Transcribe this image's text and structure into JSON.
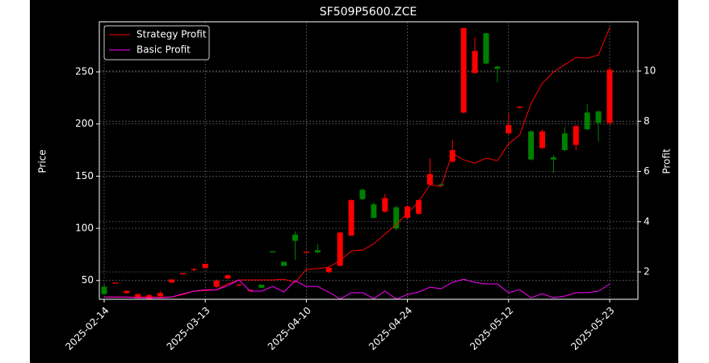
{
  "chart_data": {
    "type": "candlestick",
    "title": "SF509P5600.ZCE",
    "y_label": "Price",
    "y2_label": "Profit",
    "categories": [
      "2025-02-14",
      null,
      null,
      null,
      null,
      null,
      null,
      null,
      null,
      "2025-03-13",
      null,
      null,
      null,
      null,
      null,
      null,
      null,
      null,
      "2025-04-10",
      null,
      null,
      null,
      null,
      null,
      null,
      null,
      null,
      "2025-04-24",
      null,
      null,
      null,
      null,
      null,
      null,
      null,
      null,
      "2025-05-12",
      null,
      null,
      null,
      null,
      null,
      null,
      null,
      null,
      "2025-05-23"
    ],
    "open": [
      44,
      47,
      38,
      33,
      32,
      35,
      48,
      56,
      60,
      62,
      44,
      52,
      45,
      40,
      46,
      78,
      68,
      94,
      76.5,
      79,
      58,
      64,
      93,
      137,
      123,
      116,
      120,
      110,
      114,
      142,
      142,
      164,
      211,
      249,
      287,
      255,
      191,
      215.5,
      193,
      177,
      168,
      191,
      180,
      211,
      212,
      201
    ],
    "high": [
      46,
      48,
      41,
      37,
      37,
      40,
      51,
      57,
      62,
      66,
      51,
      56,
      47,
      41,
      46,
      78,
      68,
      97,
      78,
      85,
      64,
      96,
      128,
      138,
      125,
      133,
      122,
      122,
      128,
      167,
      143,
      185,
      292,
      283,
      287,
      256,
      210,
      217,
      194,
      195,
      170,
      197,
      199,
      219,
      213,
      255
    ],
    "low": [
      36,
      47,
      37,
      33,
      32,
      34,
      48,
      56,
      59,
      62,
      43,
      51,
      45,
      40,
      43,
      77,
      64,
      70,
      76,
      76,
      57,
      64,
      93,
      127,
      110,
      115,
      98,
      109,
      113,
      141,
      140,
      163,
      210,
      248,
      257,
      240,
      190,
      215,
      165,
      176,
      153,
      174,
      175,
      194,
      183,
      199
    ],
    "close": [
      37,
      48,
      40,
      37,
      36,
      38,
      51,
      57,
      61,
      66,
      50,
      55,
      46,
      41,
      43,
      77,
      64,
      88,
      77.5,
      77,
      62,
      96,
      127,
      128,
      110,
      129,
      100,
      121,
      127,
      152,
      141,
      175,
      292,
      270,
      258,
      253,
      199,
      216.5,
      166,
      193,
      166,
      175,
      198,
      195,
      201,
      252
    ],
    "up_color": "#ff0000",
    "down_color": "#008000",
    "series": [
      {
        "name": "Strategy Profit",
        "color": "#ff0000",
        "axis": "y2",
        "values": [
          1.0,
          1.0,
          1.0,
          1.0,
          1.0,
          1.0,
          1.0,
          1.1,
          1.23,
          1.26,
          1.29,
          1.52,
          1.68,
          1.68,
          1.68,
          1.68,
          1.71,
          1.58,
          2.1,
          2.13,
          2.19,
          2.45,
          2.83,
          2.87,
          3.12,
          3.51,
          3.89,
          4.34,
          4.79,
          5.47,
          5.4,
          6.72,
          6.46,
          6.33,
          6.53,
          6.43,
          7.1,
          7.46,
          8.71,
          9.51,
          9.96,
          10.25,
          10.54,
          10.51,
          10.64,
          11.73
        ]
      },
      {
        "name": "Basic Profit",
        "color": "#ff00ff",
        "axis": "y2",
        "values": [
          1.0,
          1.0,
          1.0,
          0.97,
          0.97,
          0.97,
          1.0,
          1.13,
          1.23,
          1.29,
          1.29,
          1.45,
          1.68,
          1.23,
          1.23,
          1.42,
          1.2,
          1.65,
          1.42,
          1.42,
          1.2,
          0.92,
          1.17,
          1.17,
          0.94,
          1.23,
          0.92,
          1.1,
          1.2,
          1.39,
          1.33,
          1.58,
          1.71,
          1.58,
          1.52,
          1.52,
          1.17,
          1.29,
          0.97,
          1.13,
          0.97,
          1.04,
          1.17,
          1.17,
          1.23,
          1.52
        ]
      }
    ],
    "ylim": [
      32,
      298
    ],
    "yticks": [
      50,
      100,
      150,
      200,
      250
    ],
    "y2lim": [
      0.91,
      11.96
    ],
    "y2ticks": [
      2,
      4,
      6,
      8,
      10
    ],
    "grid": true,
    "legend": "upper left"
  }
}
